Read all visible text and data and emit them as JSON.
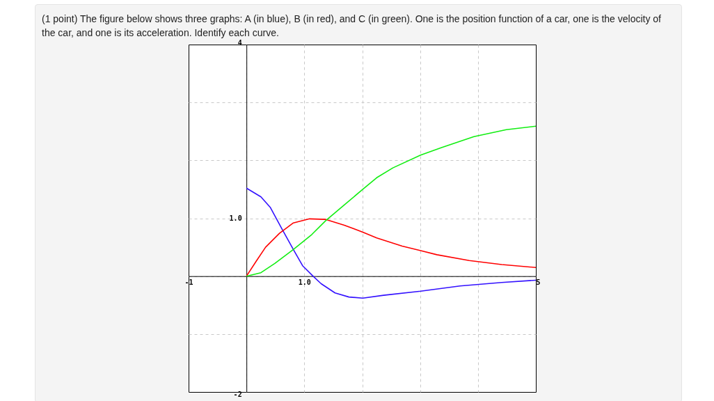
{
  "chart_data": {
    "type": "line",
    "title": "(1 point) The figure below shows three graphs: A (in blue), B (in red), and C (in green). One is the position function of a car, one is the velocity of the car, and one is its acceleration. Identify each curve.",
    "xlim": [
      -1,
      5
    ],
    "ylim": [
      -2,
      4
    ],
    "xticks": [
      {
        "value": -1,
        "label": "-1"
      },
      {
        "value": 0,
        "label": null
      },
      {
        "value": 1,
        "label": "1.0"
      },
      {
        "value": 2,
        "label": null
      },
      {
        "value": 3,
        "label": null
      },
      {
        "value": 4,
        "label": null
      },
      {
        "value": 5,
        "label": "5"
      }
    ],
    "yticks": [
      {
        "value": -2,
        "label": "-2"
      },
      {
        "value": -1,
        "label": null
      },
      {
        "value": 0,
        "label": null
      },
      {
        "value": 1,
        "label": "1.0"
      },
      {
        "value": 2,
        "label": null
      },
      {
        "value": 3,
        "label": null
      },
      {
        "value": 4,
        "label": "4"
      }
    ],
    "grid": true,
    "line_style": "solid",
    "series": [
      {
        "color": "#3311ff",
        "x": [
          0,
          0.25,
          0.41,
          0.61,
          0.81,
          0.97,
          1.15,
          1.29,
          1.53,
          1.77,
          2.01,
          2.37,
          3.01,
          3.69,
          4.41,
          5
        ],
        "values": [
          1.52,
          1.37,
          1.19,
          0.82,
          0.46,
          0.18,
          0,
          -0.13,
          -0.29,
          -0.36,
          -0.38,
          -0.33,
          -0.26,
          -0.17,
          -0.11,
          -0.07
        ]
      },
      {
        "color": "#ff0000",
        "x": [
          0,
          0.17,
          0.33,
          0.57,
          0.81,
          1.09,
          1.37,
          1.69,
          2.01,
          2.25,
          2.69,
          3.01,
          3.29,
          3.85,
          4.41,
          5
        ],
        "values": [
          0,
          0.26,
          0.5,
          0.74,
          0.92,
          0.99,
          0.98,
          0.88,
          0.76,
          0.66,
          0.52,
          0.44,
          0.37,
          0.27,
          0.2,
          0.15
        ]
      },
      {
        "color": "#11ee11",
        "x": [
          0,
          0.25,
          0.49,
          0.81,
          1.13,
          1.37,
          1.69,
          2.01,
          2.25,
          2.53,
          3.01,
          3.37,
          3.93,
          4.49,
          5
        ],
        "values": [
          0,
          0.06,
          0.22,
          0.46,
          0.72,
          0.96,
          1.23,
          1.5,
          1.7,
          1.87,
          2.09,
          2.22,
          2.41,
          2.53,
          2.59
        ]
      }
    ]
  }
}
